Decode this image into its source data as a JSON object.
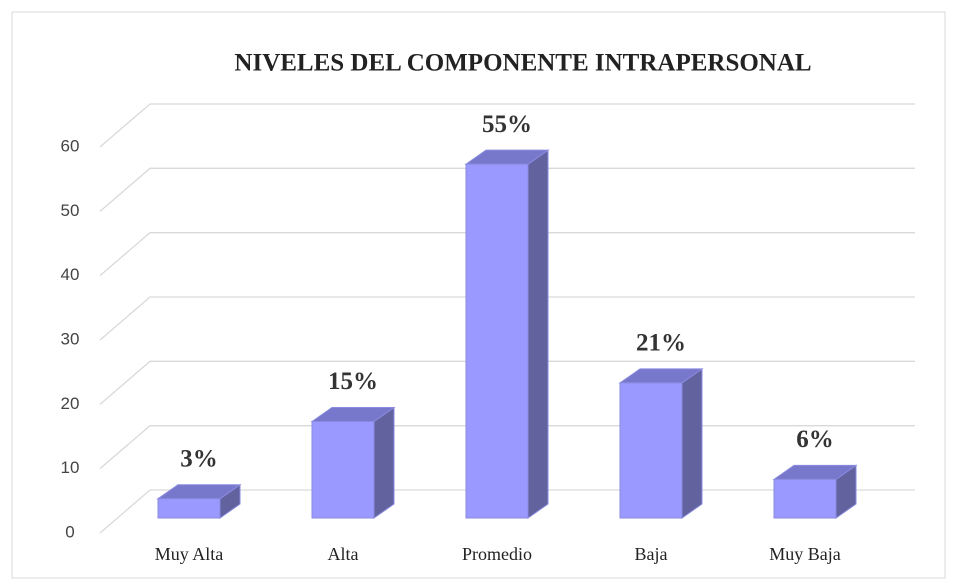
{
  "chart_data": {
    "type": "bar3d",
    "title": "NIVELES DEL COMPONENTE INTRAPERSONAL",
    "categories": [
      "Muy Alta",
      "Alta",
      "Promedio",
      "Baja",
      "Muy Baja"
    ],
    "values": [
      3,
      15,
      55,
      21,
      6
    ],
    "value_labels": [
      "3%",
      "15%",
      "55%",
      "21%",
      "6%"
    ],
    "color": "#9999ff",
    "ylim": [
      0,
      60
    ],
    "yticks": [
      0,
      10,
      20,
      30,
      40,
      50,
      60
    ],
    "grid": true
  }
}
